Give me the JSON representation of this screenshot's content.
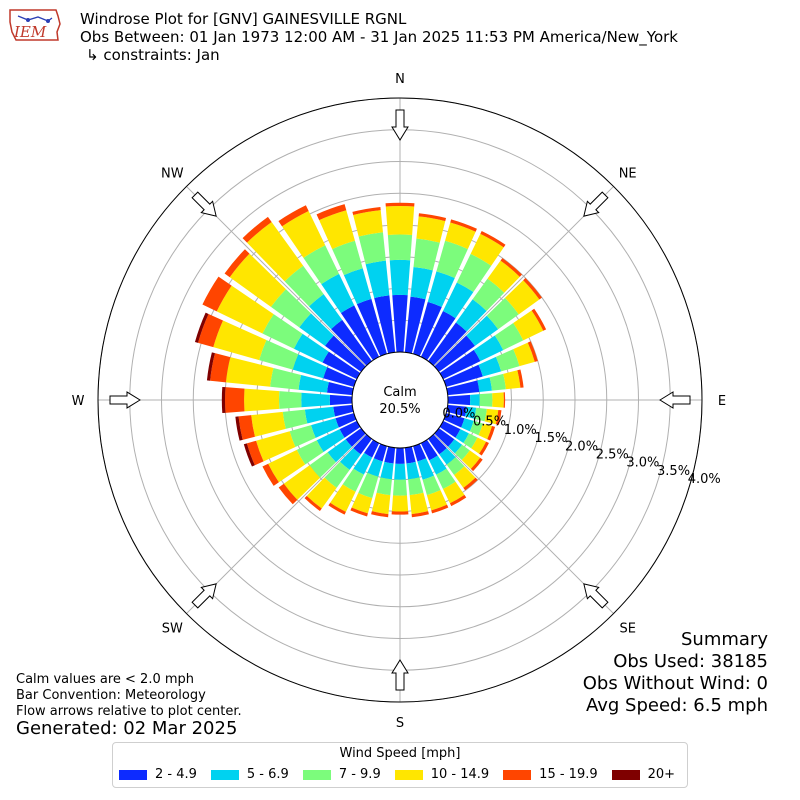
{
  "header": {
    "logo_text": "IEM",
    "title": "Windrose Plot for [GNV] GAINESVILLE RGNL",
    "obs_between": "Obs Between: 01 Jan 1973 12:00 AM - 31 Jan 2025 11:53 PM America/New_York",
    "constraints": "↳ constraints: Jan"
  },
  "calm": {
    "label": "Calm",
    "value": "20.5%"
  },
  "compass": {
    "N": "N",
    "NE": "NE",
    "E": "E",
    "SE": "SE",
    "S": "S",
    "SW": "SW",
    "W": "W",
    "NW": "NW"
  },
  "notes": {
    "calm_def": "Calm values are < 2.0 mph",
    "bar_convention": "Bar Convention: Meteorology",
    "flow_arrows": "Flow arrows relative to plot center.",
    "generated": "Generated: 02 Mar 2025"
  },
  "summary": {
    "title": "Summary",
    "obs_used": "Obs Used: 38185",
    "obs_without_wind": "Obs Without Wind: 0",
    "avg_speed": "Avg Speed: 6.5 mph"
  },
  "legend": {
    "title": "Wind Speed [mph]",
    "items": [
      "2 - 4.9",
      "5 - 6.9",
      "7 - 9.9",
      "10 - 14.9",
      "15 - 19.9",
      "20+"
    ]
  },
  "colors": {
    "bins": [
      "#0d2bff",
      "#00d2f0",
      "#7cfc7c",
      "#ffe600",
      "#ff4500",
      "#7f0000"
    ],
    "grid": "#b0b0b0"
  },
  "chart_data": {
    "type": "windrose",
    "radial_unit": "%",
    "radial_ticks": [
      "0.0%",
      "0.5%",
      "1.0%",
      "1.5%",
      "2.0%",
      "2.5%",
      "3.0%",
      "3.5%",
      "4.0%"
    ],
    "rmax": 4.0,
    "baseline_offset": 0.0,
    "directions_deg": [
      0,
      10,
      20,
      30,
      40,
      50,
      60,
      70,
      80,
      90,
      100,
      110,
      120,
      130,
      140,
      150,
      160,
      170,
      180,
      190,
      200,
      210,
      220,
      230,
      240,
      250,
      260,
      270,
      280,
      290,
      300,
      310,
      320,
      330,
      340,
      350
    ],
    "bins": [
      "2 - 4.9",
      "5 - 6.9",
      "7 - 9.9",
      "10 - 14.9",
      "15 - 19.9",
      "20+"
    ],
    "cumulative": [
      [
        0.9,
        1.45,
        1.85,
        2.3,
        2.35,
        2.35
      ],
      [
        0.88,
        1.35,
        1.8,
        2.15,
        2.2,
        2.2
      ],
      [
        0.85,
        1.35,
        1.85,
        2.15,
        2.2,
        2.2
      ],
      [
        0.8,
        1.3,
        1.8,
        2.15,
        2.2,
        2.2
      ],
      [
        0.75,
        1.2,
        1.6,
        1.95,
        2.0,
        2.0
      ],
      [
        0.7,
        1.15,
        1.55,
        1.95,
        2.0,
        2.0
      ],
      [
        0.65,
        1.05,
        1.4,
        1.75,
        1.8,
        1.8
      ],
      [
        0.6,
        0.9,
        1.2,
        1.45,
        1.5,
        1.5
      ],
      [
        0.5,
        0.7,
        0.92,
        1.15,
        1.2,
        1.2
      ],
      [
        0.35,
        0.5,
        0.7,
        0.88,
        0.9,
        0.9
      ],
      [
        0.3,
        0.45,
        0.62,
        0.8,
        0.85,
        0.85
      ],
      [
        0.3,
        0.45,
        0.6,
        0.75,
        0.8,
        0.8
      ],
      [
        0.3,
        0.45,
        0.6,
        0.75,
        0.8,
        0.8
      ],
      [
        0.3,
        0.45,
        0.6,
        0.8,
        0.85,
        0.85
      ],
      [
        0.3,
        0.5,
        0.7,
        0.95,
        1.0,
        1.0
      ],
      [
        0.3,
        0.55,
        0.8,
        1.05,
        1.1,
        1.1
      ],
      [
        0.25,
        0.55,
        0.8,
        1.05,
        1.1,
        1.1
      ],
      [
        0.25,
        0.5,
        0.75,
        1.05,
        1.1,
        1.1
      ],
      [
        0.25,
        0.5,
        0.75,
        1.0,
        1.05,
        1.05
      ],
      [
        0.25,
        0.5,
        0.75,
        1.05,
        1.1,
        1.1
      ],
      [
        0.25,
        0.5,
        0.85,
        1.1,
        1.15,
        1.15
      ],
      [
        0.25,
        0.55,
        0.85,
        1.2,
        1.25,
        1.25
      ],
      [
        0.3,
        0.6,
        0.95,
        1.35,
        1.4,
        1.4
      ],
      [
        0.3,
        0.65,
        1.0,
        1.5,
        1.6,
        1.6
      ],
      [
        0.3,
        0.7,
        1.05,
        1.55,
        1.65,
        1.65
      ],
      [
        0.3,
        0.7,
        1.05,
        1.6,
        1.75,
        1.8
      ],
      [
        0.3,
        0.75,
        1.1,
        1.6,
        1.8,
        1.85
      ],
      [
        0.35,
        0.8,
        1.15,
        1.7,
        2.0,
        2.05
      ],
      [
        0.4,
        0.85,
        1.3,
        2.0,
        2.25,
        2.3
      ],
      [
        0.5,
        1.0,
        1.55,
        2.3,
        2.55,
        2.6
      ],
      [
        0.6,
        1.1,
        1.65,
        2.45,
        2.7,
        2.7
      ],
      [
        0.7,
        1.2,
        1.75,
        2.55,
        2.65,
        2.65
      ],
      [
        0.8,
        1.3,
        1.85,
        2.7,
        2.8,
        2.8
      ],
      [
        0.9,
        1.45,
        1.95,
        2.55,
        2.65,
        2.65
      ],
      [
        0.9,
        1.4,
        1.85,
        2.35,
        2.45,
        2.45
      ],
      [
        0.9,
        1.45,
        1.9,
        2.25,
        2.3,
        2.3
      ]
    ]
  }
}
